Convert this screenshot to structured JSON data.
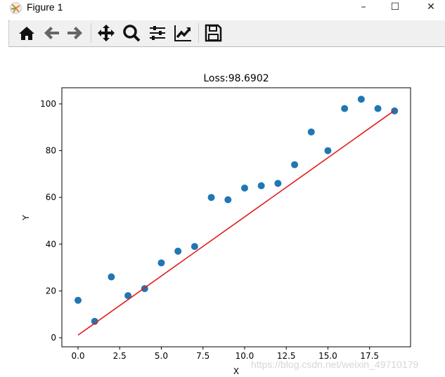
{
  "window": {
    "title": "Figure 1",
    "minimize": "–",
    "maximize": "☐",
    "close": "✕"
  },
  "toolbar": {
    "buttons": [
      "home-icon",
      "back-icon",
      "forward-icon",
      "pan-icon",
      "zoom-icon",
      "configure-subplots-icon",
      "edit-axis-icon",
      "save-icon"
    ]
  },
  "watermark": "https://blog.csdn.net/weixin_49710179",
  "chart_data": {
    "type": "scatter",
    "title": "Loss:98.6902",
    "xlabel": "X",
    "ylabel": "Y",
    "xlim": [
      -0.97,
      19.96
    ],
    "ylim": [
      -3.9,
      106.9
    ],
    "xticks": [
      "0.0",
      "2.5",
      "5.0",
      "7.5",
      "10.0",
      "12.5",
      "15.0",
      "17.5"
    ],
    "yticks": [
      "0",
      "20",
      "40",
      "60",
      "80",
      "100"
    ],
    "grid": false,
    "colors": {
      "points": "#1f77b4",
      "line": "#e41a1c"
    },
    "x": [
      0,
      1,
      2,
      3,
      4,
      5,
      6,
      7,
      8,
      9,
      10,
      11,
      12,
      13,
      14,
      15,
      16,
      17,
      18,
      19
    ],
    "y": [
      16,
      7,
      26,
      18,
      21,
      32,
      37,
      39,
      60,
      59,
      64,
      65,
      66,
      74,
      88,
      80,
      98,
      102,
      98,
      97
    ],
    "fit_line": {
      "x": [
        0,
        19
      ],
      "y": [
        1.1,
        97.2
      ]
    }
  }
}
